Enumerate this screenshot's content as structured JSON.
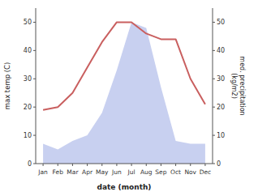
{
  "chart_data": {
    "type": "line",
    "categories": [
      "Jan",
      "Feb",
      "Mar",
      "Apr",
      "May",
      "Jun",
      "Jul",
      "Aug",
      "Sep",
      "Oct",
      "Nov",
      "Dec"
    ],
    "series": [
      {
        "type": "area",
        "color": "#c8d0f0",
        "values": [
          7,
          5,
          8,
          10,
          18,
          33,
          50,
          48,
          27,
          8,
          7,
          7
        ]
      },
      {
        "type": "line",
        "color": "#c95f5f",
        "axis": "y2",
        "values": [
          19,
          20,
          25,
          34,
          43,
          50,
          50,
          46,
          44,
          44,
          30,
          21
        ]
      }
    ],
    "x_label": "date (month)",
    "y_label": "max temp (C)",
    "y2_label": "med. precipitation\n(kg/m2)",
    "ylim": [
      0,
      55
    ],
    "yticks": [
      0,
      10,
      20,
      30,
      40,
      50
    ],
    "y2lim": [
      0,
      55
    ],
    "y2ticks": [
      0,
      10,
      20,
      30,
      40,
      50
    ],
    "grid": false
  }
}
